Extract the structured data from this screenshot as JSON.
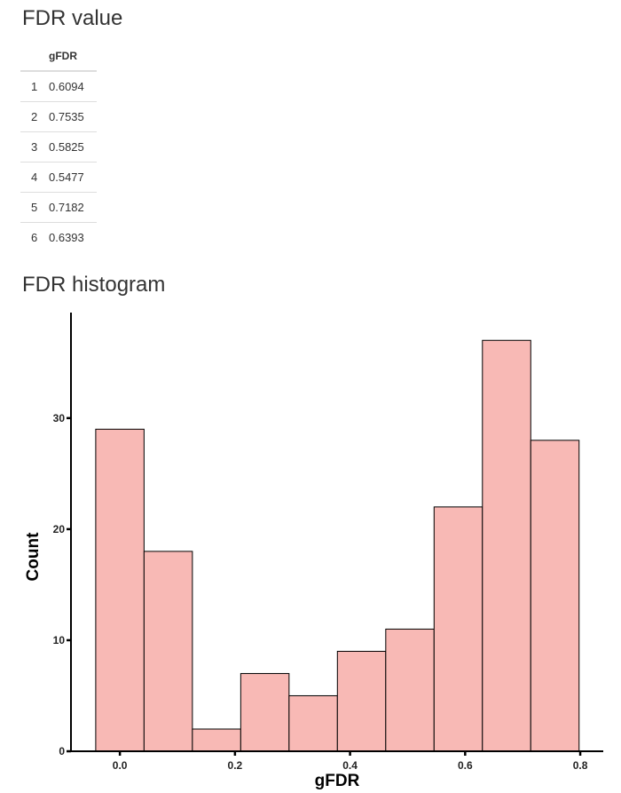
{
  "sections": {
    "value_title": "FDR value",
    "histogram_title": "FDR histogram"
  },
  "table": {
    "header": [
      "",
      "gFDR"
    ],
    "rows": [
      [
        "1",
        "0.6094"
      ],
      [
        "2",
        "0.7535"
      ],
      [
        "3",
        "0.5825"
      ],
      [
        "4",
        "0.5477"
      ],
      [
        "5",
        "0.7182"
      ],
      [
        "6",
        "0.6393"
      ]
    ]
  },
  "chart_data": {
    "type": "bar",
    "title": "FDR histogram",
    "xlabel": "gFDR",
    "ylabel": "Count",
    "bin_width": 0.084,
    "bins": [
      {
        "x0": -0.042,
        "x1": 0.042,
        "count": 29
      },
      {
        "x0": 0.042,
        "x1": 0.126,
        "count": 18
      },
      {
        "x0": 0.126,
        "x1": 0.21,
        "count": 2
      },
      {
        "x0": 0.21,
        "x1": 0.294,
        "count": 7
      },
      {
        "x0": 0.294,
        "x1": 0.378,
        "count": 5
      },
      {
        "x0": 0.378,
        "x1": 0.462,
        "count": 9
      },
      {
        "x0": 0.462,
        "x1": 0.546,
        "count": 11
      },
      {
        "x0": 0.546,
        "x1": 0.63,
        "count": 22
      },
      {
        "x0": 0.63,
        "x1": 0.714,
        "count": 37
      },
      {
        "x0": 0.714,
        "x1": 0.798,
        "count": 28
      }
    ],
    "x_ticks": [
      0.0,
      0.2,
      0.4,
      0.6,
      0.8
    ],
    "x_tick_labels": [
      "0.0",
      "0.2",
      "0.4",
      "0.6",
      "0.8"
    ],
    "y_ticks": [
      0,
      10,
      20,
      30
    ],
    "y_tick_labels": [
      "0",
      "10",
      "20",
      "30"
    ],
    "xlim": [
      -0.085,
      0.84
    ],
    "ylim": [
      0,
      39.5
    ],
    "bar_fill": "#F8B9B5",
    "bar_stroke": "#000000",
    "grid": false,
    "legend": "none"
  }
}
